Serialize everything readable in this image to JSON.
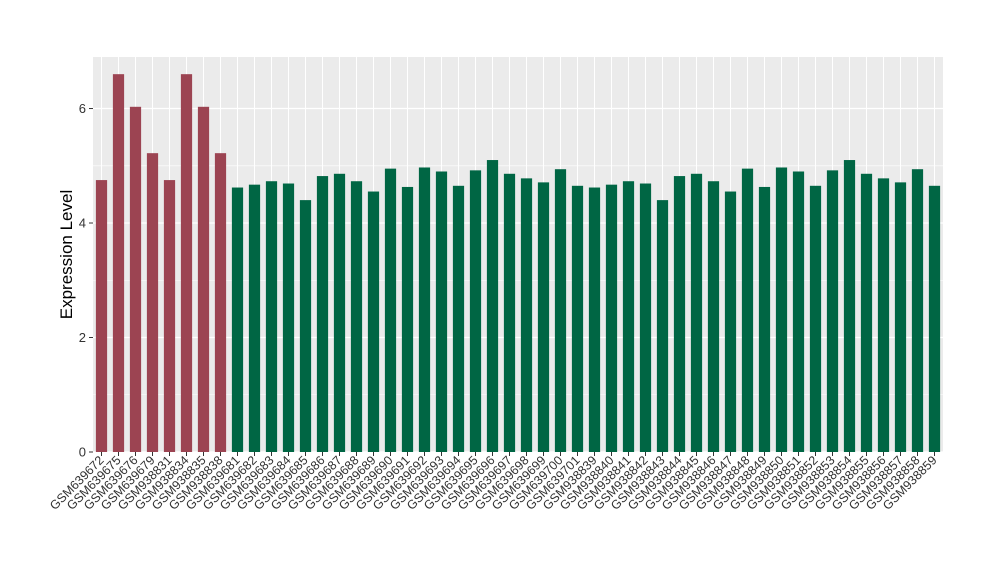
{
  "chart_data": {
    "type": "bar",
    "title": "",
    "xlabel": "",
    "ylabel": "Expression Level",
    "ylim": [
      0,
      6.9
    ],
    "yticks": [
      0,
      2,
      4,
      6
    ],
    "grid": true,
    "panel_background": "#ebebeb",
    "grid_color": "#ffffff",
    "colors": {
      "group_a": "#9c4452",
      "group_b": "#006644"
    },
    "categories": [
      "GSM639672",
      "GSM639675",
      "GSM639676",
      "GSM639679",
      "GSM938831",
      "GSM938834",
      "GSM938835",
      "GSM938838",
      "GSM639681",
      "GSM639682",
      "GSM639683",
      "GSM639684",
      "GSM639685",
      "GSM639686",
      "GSM639687",
      "GSM639688",
      "GSM639689",
      "GSM639690",
      "GSM639691",
      "GSM639692",
      "GSM639693",
      "GSM639694",
      "GSM639695",
      "GSM639696",
      "GSM639697",
      "GSM639698",
      "GSM639699",
      "GSM639700",
      "GSM639701",
      "GSM938839",
      "GSM938840",
      "GSM938841",
      "GSM938842",
      "GSM938843",
      "GSM938844",
      "GSM938845",
      "GSM938846",
      "GSM938847",
      "GSM938848",
      "GSM938849",
      "GSM938850",
      "GSM938851",
      "GSM938852",
      "GSM938853",
      "GSM938854",
      "GSM938855",
      "GSM938856",
      "GSM938857",
      "GSM938858",
      "GSM938859"
    ],
    "values": [
      4.75,
      6.6,
      6.03,
      5.22,
      4.75,
      6.6,
      6.03,
      5.22,
      4.62,
      4.67,
      4.73,
      4.69,
      4.4,
      4.82,
      4.86,
      4.73,
      4.55,
      4.95,
      4.63,
      4.97,
      4.9,
      4.65,
      4.92,
      5.1,
      4.86,
      4.78,
      4.71,
      4.94,
      4.65,
      4.62,
      4.67,
      4.73,
      4.69,
      4.4,
      4.82,
      4.86,
      4.73,
      4.55,
      4.95,
      4.63,
      4.97,
      4.9,
      4.65,
      4.92,
      5.1,
      4.86,
      4.78,
      4.71,
      4.94,
      4.65
    ],
    "groups": [
      "a",
      "a",
      "a",
      "a",
      "a",
      "a",
      "a",
      "a",
      "b",
      "b",
      "b",
      "b",
      "b",
      "b",
      "b",
      "b",
      "b",
      "b",
      "b",
      "b",
      "b",
      "b",
      "b",
      "b",
      "b",
      "b",
      "b",
      "b",
      "b",
      "b",
      "b",
      "b",
      "b",
      "b",
      "b",
      "b",
      "b",
      "b",
      "b",
      "b",
      "b",
      "b",
      "b",
      "b",
      "b",
      "b",
      "b",
      "b",
      "b",
      "b"
    ]
  }
}
